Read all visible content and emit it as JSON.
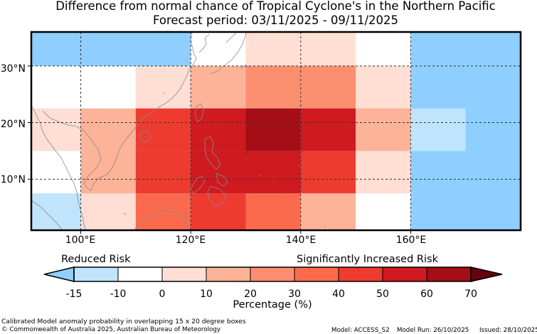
{
  "title": {
    "line1": "Difference from normal chance of Tropical Cyclone's in the Northern Pacific",
    "line2": "Forecast period: 03/11/2025 - 09/11/2025"
  },
  "map": {
    "region": "Northern Pacific",
    "lon_range": [
      91,
      180
    ],
    "lat_range": [
      1,
      36
    ],
    "lon_ticks": [
      "100°E",
      "120°E",
      "140°E",
      "160°E"
    ],
    "lat_ticks": [
      "30°N",
      "20°N",
      "10°N"
    ],
    "ocean_color": "#8ecfff",
    "cells": [
      {
        "lon_w": 90,
        "lon_e": 110,
        "lat_s": 30,
        "lat_n": 40,
        "color": "#8ecfff"
      },
      {
        "lon_w": 110,
        "lon_e": 120,
        "lat_s": 30,
        "lat_n": 40,
        "color": "#8ecfff"
      },
      {
        "lon_w": 120,
        "lon_e": 130,
        "lat_s": 30,
        "lat_n": 40,
        "color": "#ffffff"
      },
      {
        "lon_w": 130,
        "lon_e": 150,
        "lat_s": 30,
        "lat_n": 40,
        "color": "#ffded3"
      },
      {
        "lon_w": 150,
        "lon_e": 160,
        "lat_s": 30,
        "lat_n": 40,
        "color": "#ffffff"
      },
      {
        "lon_w": 90,
        "lon_e": 110,
        "lat_s": 22.5,
        "lat_n": 30,
        "color": "#ffffff"
      },
      {
        "lon_w": 110,
        "lon_e": 120,
        "lat_s": 22.5,
        "lat_n": 30,
        "color": "#ffded3"
      },
      {
        "lon_w": 120,
        "lon_e": 130,
        "lat_s": 22.5,
        "lat_n": 30,
        "color": "#fdb398"
      },
      {
        "lon_w": 130,
        "lon_e": 150,
        "lat_s": 22.5,
        "lat_n": 30,
        "color": "#fc8f6f"
      },
      {
        "lon_w": 150,
        "lon_e": 160,
        "lat_s": 22.5,
        "lat_n": 30,
        "color": "#ffded3"
      },
      {
        "lon_w": 90,
        "lon_e": 100,
        "lat_s": 15,
        "lat_n": 22.5,
        "color": "#ffded3"
      },
      {
        "lon_w": 100,
        "lon_e": 110,
        "lat_s": 15,
        "lat_n": 22.5,
        "color": "#fdb398"
      },
      {
        "lon_w": 110,
        "lon_e": 120,
        "lat_s": 15,
        "lat_n": 22.5,
        "color": "#ee3b2f"
      },
      {
        "lon_w": 120,
        "lon_e": 130,
        "lat_s": 15,
        "lat_n": 22.5,
        "color": "#cf1a1f"
      },
      {
        "lon_w": 130,
        "lon_e": 140,
        "lat_s": 15,
        "lat_n": 22.5,
        "color": "#a50e16"
      },
      {
        "lon_w": 140,
        "lon_e": 150,
        "lat_s": 15,
        "lat_n": 22.5,
        "color": "#cf1a1f"
      },
      {
        "lon_w": 150,
        "lon_e": 160,
        "lat_s": 15,
        "lat_n": 22.5,
        "color": "#fdb398"
      },
      {
        "lon_w": 160,
        "lon_e": 170,
        "lat_s": 15,
        "lat_n": 22.5,
        "color": "#bfe4fc"
      },
      {
        "lon_w": 90,
        "lon_e": 100,
        "lat_s": 7.5,
        "lat_n": 15,
        "color": "#ffffff"
      },
      {
        "lon_w": 100,
        "lon_e": 110,
        "lat_s": 7.5,
        "lat_n": 15,
        "color": "#fdb398"
      },
      {
        "lon_w": 110,
        "lon_e": 120,
        "lat_s": 7.5,
        "lat_n": 15,
        "color": "#ee3b2f"
      },
      {
        "lon_w": 120,
        "lon_e": 140,
        "lat_s": 7.5,
        "lat_n": 15,
        "color": "#cf1a1f"
      },
      {
        "lon_w": 140,
        "lon_e": 150,
        "lat_s": 7.5,
        "lat_n": 15,
        "color": "#ee3b2f"
      },
      {
        "lon_w": 150,
        "lon_e": 160,
        "lat_s": 7.5,
        "lat_n": 15,
        "color": "#ffded3"
      },
      {
        "lon_w": 90,
        "lon_e": 100,
        "lat_s": 0,
        "lat_n": 7.5,
        "color": "#bfe4fc"
      },
      {
        "lon_w": 100,
        "lon_e": 110,
        "lat_s": 0,
        "lat_n": 7.5,
        "color": "#ffded3"
      },
      {
        "lon_w": 110,
        "lon_e": 120,
        "lat_s": 0,
        "lat_n": 7.5,
        "color": "#fc6a4d"
      },
      {
        "lon_w": 120,
        "lon_e": 130,
        "lat_s": 0,
        "lat_n": 7.5,
        "color": "#ee3b2f"
      },
      {
        "lon_w": 130,
        "lon_e": 140,
        "lat_s": 0,
        "lat_n": 7.5,
        "color": "#fc6a4d"
      },
      {
        "lon_w": 140,
        "lon_e": 150,
        "lat_s": 0,
        "lat_n": 7.5,
        "color": "#fdb398"
      },
      {
        "lon_w": 150,
        "lon_e": 160,
        "lat_s": 0,
        "lat_n": 7.5,
        "color": "#ffffff"
      }
    ]
  },
  "legend": {
    "reduced_label": "Reduced Risk",
    "increased_label": "Significantly Increased Risk",
    "axis_label": "Percentage (%)",
    "ticks": [
      "-15",
      "-10",
      "0",
      "10",
      "20",
      "30",
      "40",
      "50",
      "60",
      "70"
    ],
    "bins": [
      {
        "from": -15,
        "to": -10,
        "color": "#bfe4fc"
      },
      {
        "from": -10,
        "to": 0,
        "color": "#ffffff"
      },
      {
        "from": 0,
        "to": 10,
        "color": "#ffded3"
      },
      {
        "from": 10,
        "to": 20,
        "color": "#fdb398"
      },
      {
        "from": 20,
        "to": 30,
        "color": "#fc8f6f"
      },
      {
        "from": 30,
        "to": 40,
        "color": "#fc6a4d"
      },
      {
        "from": 40,
        "to": 50,
        "color": "#ee3b2f"
      },
      {
        "from": 50,
        "to": 60,
        "color": "#cf1a1f"
      },
      {
        "from": 60,
        "to": 70,
        "color": "#a50e16"
      }
    ],
    "under_color": "#8ecfff",
    "over_color": "#67000d"
  },
  "footer": {
    "note": "Calibrated Model anomaly probability in overlapping 15 x 20 degree boxes",
    "copyright": "© Commonwealth of Australia 2025, Australian Bureau of Meteorology",
    "model": "Model: ACCESS_S2",
    "run": "Model Run: 26/10/2025",
    "issued": "Issued: 28/10/2025"
  }
}
